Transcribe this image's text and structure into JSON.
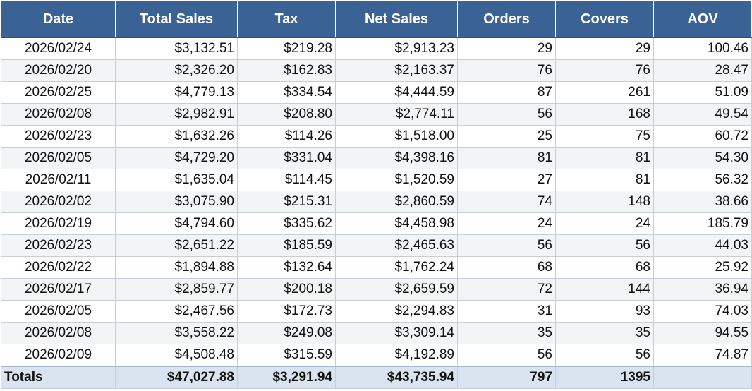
{
  "table": {
    "headers": [
      "Date",
      "Total Sales",
      "Tax",
      "Net Sales",
      "Orders",
      "Covers",
      "AOV"
    ],
    "rows": [
      [
        "2026/02/24",
        "$3,132.51",
        "$219.28",
        "$2,913.23",
        "29",
        "29",
        "100.46"
      ],
      [
        "2026/02/20",
        "$2,326.20",
        "$162.83",
        "$2,163.37",
        "76",
        "76",
        "28.47"
      ],
      [
        "2026/02/25",
        "$4,779.13",
        "$334.54",
        "$4,444.59",
        "87",
        "261",
        "51.09"
      ],
      [
        "2026/02/08",
        "$2,982.91",
        "$208.80",
        "$2,774.11",
        "56",
        "168",
        "49.54"
      ],
      [
        "2026/02/23",
        "$1,632.26",
        "$114.26",
        "$1,518.00",
        "25",
        "75",
        "60.72"
      ],
      [
        "2026/02/05",
        "$4,729.20",
        "$331.04",
        "$4,398.16",
        "81",
        "81",
        "54.30"
      ],
      [
        "2026/02/11",
        "$1,635.04",
        "$114.45",
        "$1,520.59",
        "27",
        "81",
        "56.32"
      ],
      [
        "2026/02/02",
        "$3,075.90",
        "$215.31",
        "$2,860.59",
        "74",
        "148",
        "38.66"
      ],
      [
        "2026/02/19",
        "$4,794.60",
        "$335.62",
        "$4,458.98",
        "24",
        "24",
        "185.79"
      ],
      [
        "2026/02/23",
        "$2,651.22",
        "$185.59",
        "$2,465.63",
        "56",
        "56",
        "44.03"
      ],
      [
        "2026/02/22",
        "$1,894.88",
        "$132.64",
        "$1,762.24",
        "68",
        "68",
        "25.92"
      ],
      [
        "2026/02/17",
        "$2,859.77",
        "$200.18",
        "$2,659.59",
        "72",
        "144",
        "36.94"
      ],
      [
        "2026/02/05",
        "$2,467.56",
        "$172.73",
        "$2,294.83",
        "31",
        "93",
        "74.03"
      ],
      [
        "2026/02/08",
        "$3,558.22",
        "$249.08",
        "$3,309.14",
        "35",
        "35",
        "94.55"
      ],
      [
        "2026/02/09",
        "$4,508.48",
        "$315.59",
        "$4,192.89",
        "56",
        "56",
        "74.87"
      ]
    ],
    "totals": [
      "Totals",
      "$47,027.88",
      "$3,291.94",
      "$43,735.94",
      "797",
      "1395"
    ]
  }
}
